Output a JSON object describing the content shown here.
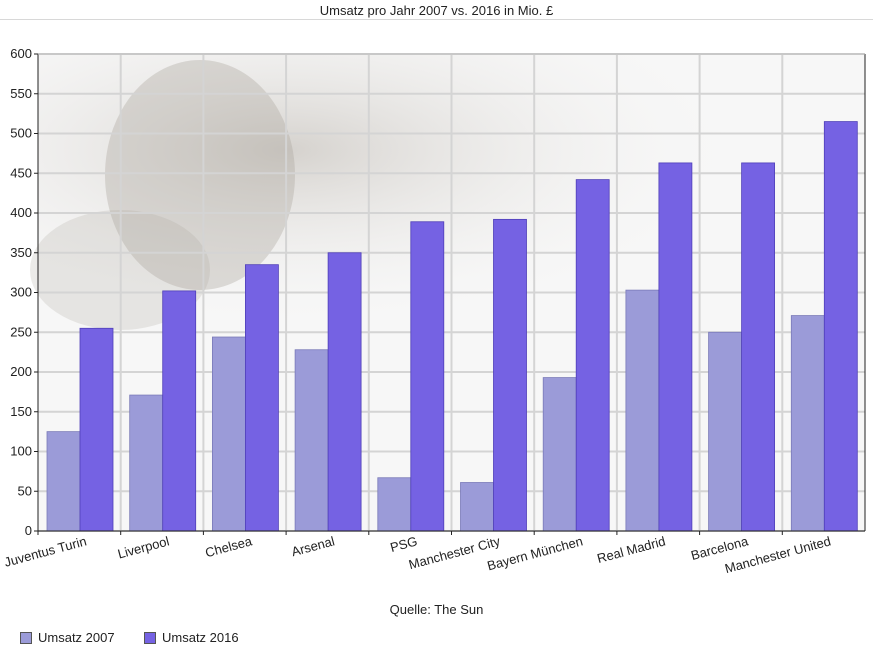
{
  "chart_data": {
    "type": "bar",
    "title": "Umsatz pro Jahr 2007 vs. 2016 in Mio. £",
    "xlabel": "",
    "ylabel": "",
    "ylim": [
      0,
      600
    ],
    "yticks": [
      0,
      50,
      100,
      150,
      200,
      250,
      300,
      350,
      400,
      450,
      500,
      550,
      600
    ],
    "grid": true,
    "categories": [
      "Juventus Turin",
      "Liverpool",
      "Chelsea",
      "Arsenal",
      "PSG",
      "Manchester City",
      "Bayern München",
      "Real Madrid",
      "Barcelona",
      "Manchester United"
    ],
    "series": [
      {
        "name": "Umsatz 2007",
        "color": "#9b9bd8",
        "values": [
          125,
          171,
          244,
          228,
          67,
          61,
          193,
          303,
          250,
          271
        ]
      },
      {
        "name": "Umsatz 2016",
        "color": "#7562e3",
        "values": [
          255,
          302,
          335,
          350,
          389,
          392,
          442,
          463,
          463,
          515
        ]
      }
    ],
    "legend_position": "bottom-left",
    "source": "Quelle: The Sun"
  }
}
